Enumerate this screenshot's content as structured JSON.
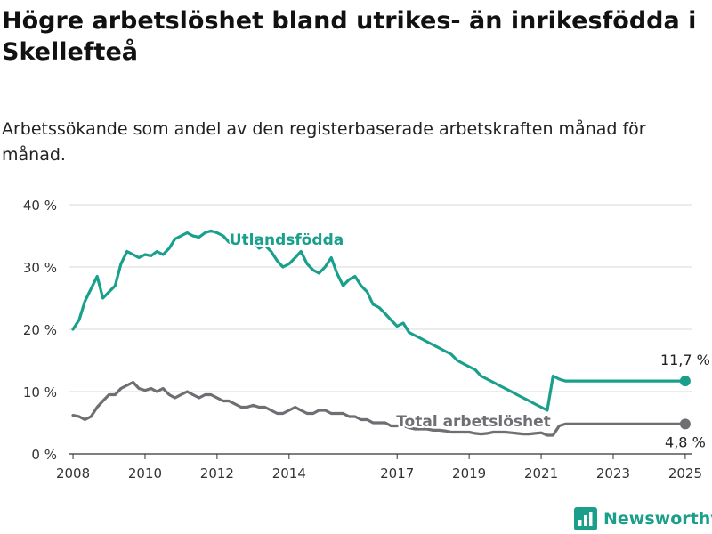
{
  "title": "Högre arbetslöshet bland utrikes- än inrikesfödda i Skellefteå",
  "subtitle": "Arbetssökande som andel av den registerbaserade arbetskraften månad för månad.",
  "brand": {
    "name": "Newsworthy",
    "icon": "bar-chart-icon",
    "color": "#1b9e8a"
  },
  "chart_data": {
    "type": "line",
    "title": "Högre arbetslöshet bland utrikes- än inrikesfödda i Skellefteå",
    "subtitle": "Arbetssökande som andel av den registerbaserade arbetskraften månad för månad.",
    "xlabel": "",
    "ylabel": "",
    "ylim": [
      0,
      40
    ],
    "xlim": [
      2007.9,
      2025.2
    ],
    "yticks": [
      0,
      10,
      20,
      30,
      40
    ],
    "ytick_labels": [
      "0 %",
      "10 %",
      "20 %",
      "30 %",
      "40 %"
    ],
    "xticks": [
      2008,
      2010,
      2012,
      2014,
      2017,
      2019,
      2021,
      2023,
      2025
    ],
    "xtick_labels": [
      "2008",
      "2010",
      "2012",
      "2014",
      "2017",
      "2019",
      "2021",
      "2023",
      "2025"
    ],
    "grid": true,
    "legend": "none",
    "series": [
      {
        "name": "Utlandsfödda",
        "color": "#18a08c",
        "end_label": "11,7 %",
        "x": [
          2008.0,
          2008.17,
          2008.33,
          2008.5,
          2008.67,
          2008.83,
          2009.0,
          2009.17,
          2009.33,
          2009.5,
          2009.67,
          2009.83,
          2010.0,
          2010.17,
          2010.33,
          2010.5,
          2010.67,
          2010.83,
          2011.0,
          2011.17,
          2011.33,
          2011.5,
          2011.67,
          2011.83,
          2012.0,
          2012.17,
          2012.33,
          2012.5,
          2012.67,
          2012.83,
          2013.0,
          2013.17,
          2013.33,
          2013.5,
          2013.67,
          2013.83,
          2014.0,
          2014.17,
          2014.33,
          2014.5,
          2014.67,
          2014.83,
          2015.0,
          2015.17,
          2015.33,
          2015.5,
          2015.67,
          2015.83,
          2016.0,
          2016.17,
          2016.33,
          2016.5,
          2016.67,
          2016.83,
          2017.0,
          2017.17,
          2017.33,
          2017.5,
          2017.67,
          2017.83,
          2018.0,
          2018.17,
          2018.33,
          2018.5,
          2018.67,
          2018.83,
          2019.0,
          2019.17,
          2019.33,
          2019.5,
          2019.67,
          2019.83,
          2020.0,
          2020.17,
          2020.33,
          2020.5,
          2020.67,
          2020.83,
          2021.0,
          2021.17,
          2021.33,
          2021.5,
          2021.67,
          2021.83,
          2022.0,
          2022.17,
          2022.33,
          2022.5,
          2022.67,
          2022.83,
          2023.0,
          2023.17,
          2023.33,
          2023.5,
          2023.67,
          2023.83,
          2024.0,
          2024.17,
          2024.33,
          2024.5,
          2024.67,
          2024.83,
          2025.0
        ],
        "y": [
          20.0,
          21.5,
          24.5,
          26.5,
          28.5,
          25.0,
          26.0,
          27.0,
          30.5,
          32.5,
          32.0,
          31.5,
          32.0,
          31.8,
          32.5,
          32.0,
          33.0,
          34.5,
          35.0,
          35.5,
          35.0,
          34.8,
          35.5,
          35.8,
          35.5,
          35.0,
          34.0,
          33.5,
          34.0,
          35.0,
          34.0,
          33.0,
          33.5,
          32.5,
          31.0,
          30.0,
          30.5,
          31.5,
          32.5,
          30.5,
          29.5,
          29.0,
          30.0,
          31.5,
          29.0,
          27.0,
          28.0,
          28.5,
          27.0,
          26.0,
          24.0,
          23.5,
          22.5,
          21.5,
          20.5,
          21.0,
          19.5,
          19.0,
          18.5,
          18.0,
          17.5,
          17.0,
          16.5,
          16.0,
          15.0,
          14.5,
          14.0,
          13.5,
          12.5,
          12.0,
          11.5,
          11.0,
          10.5,
          10.0,
          9.5,
          9.0,
          8.5,
          8.0,
          7.5,
          7.0,
          12.5,
          12.0,
          11.7,
          11.7,
          11.7,
          11.7,
          11.7,
          11.7,
          11.7,
          11.7,
          11.7,
          11.7,
          11.7,
          11.7,
          11.7,
          11.7,
          11.7,
          11.7,
          11.7,
          11.7,
          11.7,
          11.7,
          11.7
        ]
      },
      {
        "name": "Total arbetslöshet",
        "color": "#6e6e73",
        "end_label": "4,8 %",
        "x": [
          2008.0,
          2008.17,
          2008.33,
          2008.5,
          2008.67,
          2008.83,
          2009.0,
          2009.17,
          2009.33,
          2009.5,
          2009.67,
          2009.83,
          2010.0,
          2010.17,
          2010.33,
          2010.5,
          2010.67,
          2010.83,
          2011.0,
          2011.17,
          2011.33,
          2011.5,
          2011.67,
          2011.83,
          2012.0,
          2012.17,
          2012.33,
          2012.5,
          2012.67,
          2012.83,
          2013.0,
          2013.17,
          2013.33,
          2013.5,
          2013.67,
          2013.83,
          2014.0,
          2014.17,
          2014.33,
          2014.5,
          2014.67,
          2014.83,
          2015.0,
          2015.17,
          2015.33,
          2015.5,
          2015.67,
          2015.83,
          2016.0,
          2016.17,
          2016.33,
          2016.5,
          2016.67,
          2016.83,
          2017.0,
          2017.17,
          2017.33,
          2017.5,
          2017.67,
          2017.83,
          2018.0,
          2018.17,
          2018.33,
          2018.5,
          2018.67,
          2018.83,
          2019.0,
          2019.17,
          2019.33,
          2019.5,
          2019.67,
          2019.83,
          2020.0,
          2020.17,
          2020.33,
          2020.5,
          2020.67,
          2020.83,
          2021.0,
          2021.17,
          2021.33,
          2021.5,
          2021.67,
          2021.83,
          2022.0,
          2022.17,
          2022.33,
          2022.5,
          2022.67,
          2022.83,
          2023.0,
          2023.17,
          2023.33,
          2023.5,
          2023.67,
          2023.83,
          2024.0,
          2024.17,
          2024.33,
          2024.5,
          2024.67,
          2024.83,
          2025.0
        ],
        "y": [
          6.2,
          6.0,
          5.5,
          6.0,
          7.5,
          8.5,
          9.5,
          9.5,
          10.5,
          11.0,
          11.5,
          10.5,
          10.2,
          10.5,
          10.0,
          10.5,
          9.5,
          9.0,
          9.5,
          10.0,
          9.5,
          9.0,
          9.5,
          9.5,
          9.0,
          8.5,
          8.5,
          8.0,
          7.5,
          7.5,
          7.8,
          7.5,
          7.5,
          7.0,
          6.5,
          6.5,
          7.0,
          7.5,
          7.0,
          6.5,
          6.5,
          7.0,
          7.0,
          6.5,
          6.5,
          6.5,
          6.0,
          6.0,
          5.5,
          5.5,
          5.0,
          5.0,
          5.0,
          4.5,
          4.5,
          4.5,
          4.2,
          4.0,
          4.0,
          4.0,
          3.8,
          3.8,
          3.7,
          3.5,
          3.5,
          3.5,
          3.5,
          3.3,
          3.2,
          3.3,
          3.5,
          3.5,
          3.5,
          3.4,
          3.3,
          3.2,
          3.2,
          3.3,
          3.4,
          3.0,
          3.0,
          4.5,
          4.8,
          4.8,
          4.8,
          4.8,
          4.8,
          4.8,
          4.8,
          4.8,
          4.8,
          4.8,
          4.8,
          4.8,
          4.8,
          4.8,
          4.8,
          4.8,
          4.8,
          4.8,
          4.8,
          4.8,
          4.8
        ]
      }
    ]
  }
}
